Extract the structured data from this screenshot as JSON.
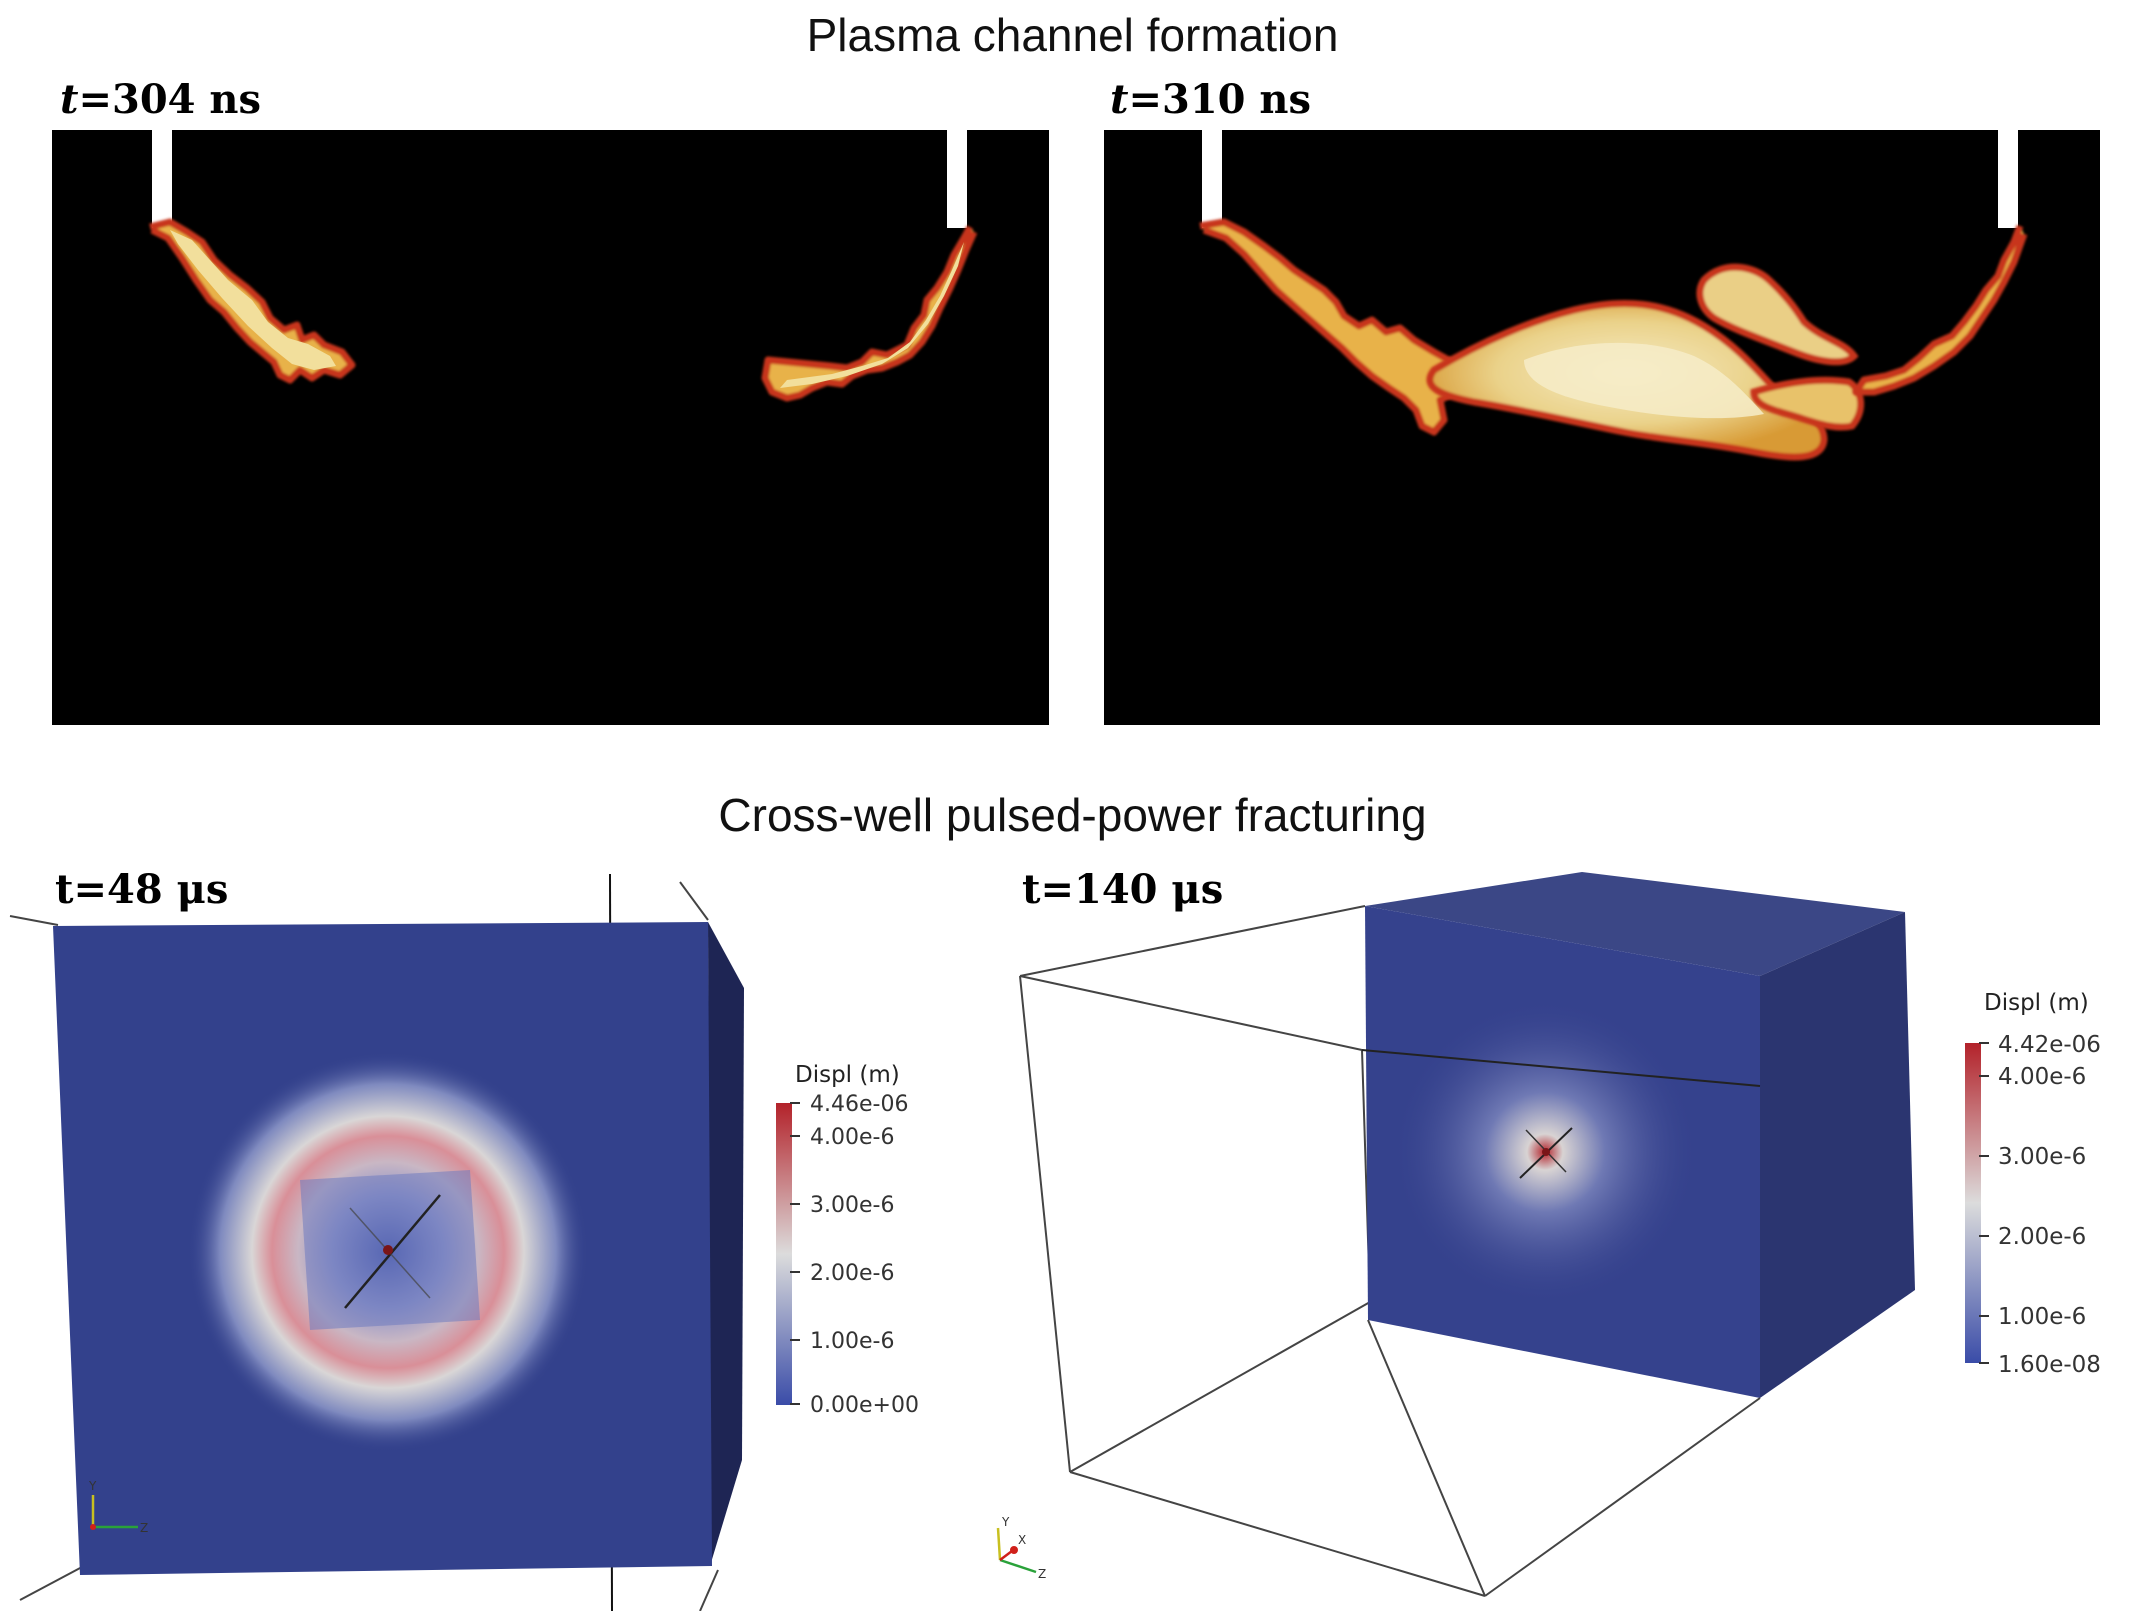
{
  "sections": {
    "plasma_title": "Plasma channel formation",
    "fracturing_title": "Cross-well pulsed-power fracturing"
  },
  "panels": {
    "plasma_left": {
      "time_var": "t",
      "time_rest": "=304 ns"
    },
    "plasma_right": {
      "time_var": "t",
      "time_rest": "=310 ns"
    },
    "frac_left": {
      "time_label": "t=48 μs"
    },
    "frac_right": {
      "time_label": "t=140 μs"
    }
  },
  "colorbars": {
    "left": {
      "title": "Displ (m)",
      "ticks": [
        "4.46e-06",
        "4.00e-6",
        "3.00e-6",
        "2.00e-6",
        "1.00e-6",
        "0.00e+00"
      ]
    },
    "right": {
      "title": "Displ (m)",
      "ticks": [
        "4.42e-06",
        "4.00e-6",
        "3.00e-6",
        "2.00e-6",
        "1.00e-6",
        "1.60e-08"
      ]
    }
  },
  "axes_triad": {
    "y": "Y",
    "z": "Z",
    "x": "X"
  },
  "colors": {
    "background_dark": "#000000",
    "plasma_core": "#f3e6b0",
    "plasma_edge": "#d0401a",
    "rock_blue": "#33418c",
    "displ_high": "#b3222a",
    "displ_mid": "#dcdcdc",
    "displ_low": "#3a4ca8"
  }
}
